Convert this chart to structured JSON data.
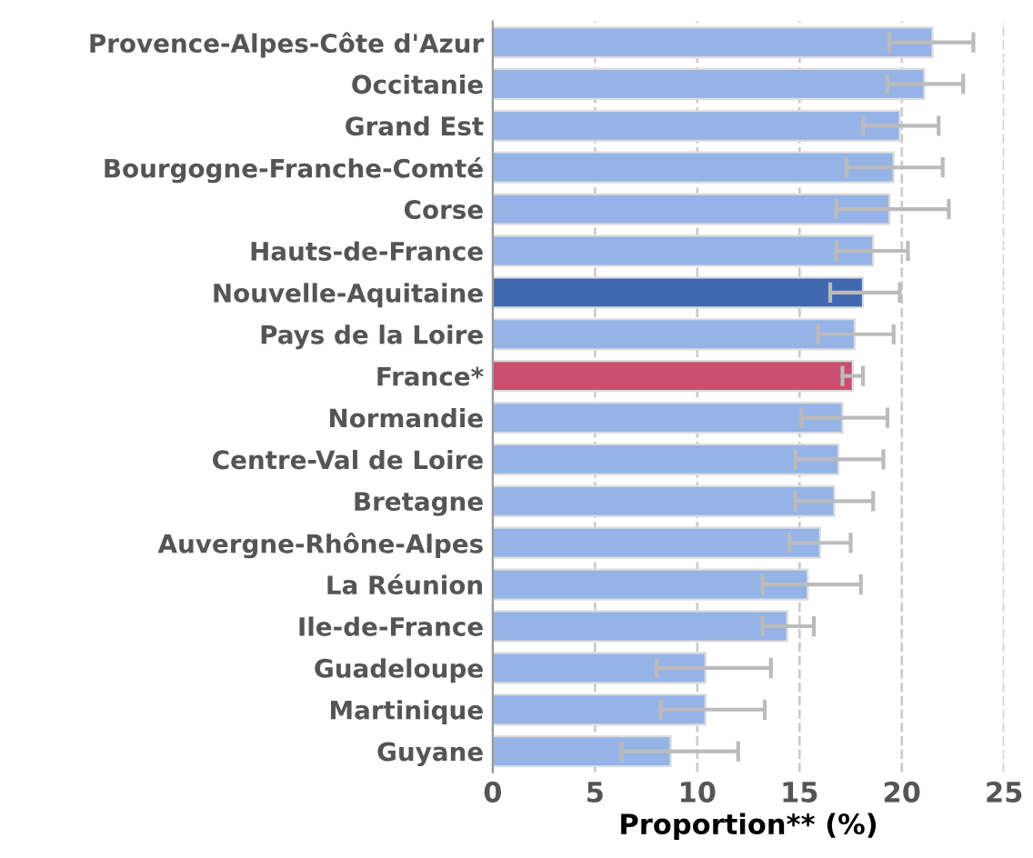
{
  "chart_data": {
    "type": "bar",
    "orientation": "horizontal",
    "xlabel": "Proportion** (%)",
    "categories": [
      "Provence-Alpes-Côte d'Azur",
      "Occitanie",
      "Grand Est",
      "Bourgogne-Franche-Comté",
      "Corse",
      "Hauts-de-France",
      "Nouvelle-Aquitaine",
      "Pays de la Loire",
      "France*",
      "Normandie",
      "Centre-Val de Loire",
      "Bretagne",
      "Auvergne-Rhône-Alpes",
      "La Réunion",
      "Ile-de-France",
      "Guadeloupe",
      "Martinique",
      "Guyane"
    ],
    "values": [
      21.5,
      21.1,
      19.9,
      19.6,
      19.4,
      18.6,
      18.1,
      17.7,
      17.6,
      17.1,
      16.9,
      16.7,
      16.0,
      15.4,
      14.4,
      10.4,
      10.4,
      8.7
    ],
    "errors": [
      [
        19.4,
        23.5
      ],
      [
        19.3,
        23.0
      ],
      [
        18.1,
        21.8
      ],
      [
        17.3,
        22.0
      ],
      [
        16.8,
        22.3
      ],
      [
        16.8,
        20.3
      ],
      [
        16.5,
        19.9
      ],
      [
        15.9,
        19.6
      ],
      [
        17.1,
        18.1
      ],
      [
        15.1,
        19.3
      ],
      [
        14.8,
        19.1
      ],
      [
        14.8,
        18.6
      ],
      [
        14.5,
        17.5
      ],
      [
        13.2,
        18.0
      ],
      [
        13.2,
        15.7
      ],
      [
        8.0,
        13.6
      ],
      [
        8.2,
        13.3
      ],
      [
        6.3,
        12.0
      ]
    ],
    "colors": [
      "#95b3e6",
      "#95b3e6",
      "#95b3e6",
      "#95b3e6",
      "#95b3e6",
      "#95b3e6",
      "#4169b0",
      "#95b3e6",
      "#c84f6e",
      "#95b3e6",
      "#95b3e6",
      "#95b3e6",
      "#95b3e6",
      "#95b3e6",
      "#95b3e6",
      "#95b3e6",
      "#95b3e6",
      "#95b3e6"
    ],
    "xlim": [
      0,
      25
    ],
    "xticks": [
      0,
      5,
      10,
      15,
      20,
      25
    ],
    "grid": "x",
    "line_style": "dashed"
  }
}
